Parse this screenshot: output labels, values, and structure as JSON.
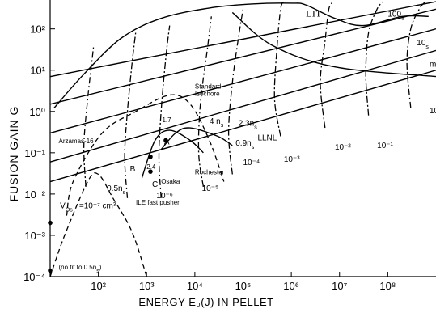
{
  "chart_data": {
    "type": "line",
    "xlabel": "ENERGY E₀(J) IN PELLET",
    "ylabel": "FUSION  GAIN  G",
    "xscale": "log",
    "yscale": "log",
    "xlim": [
      10,
      1000000000
    ],
    "ylim": [
      0.0001,
      500
    ],
    "x_ticks": [
      {
        "v": 100,
        "label": "10²"
      },
      {
        "v": 1000,
        "label": "10³"
      },
      {
        "v": 10000,
        "label": "10⁴"
      },
      {
        "v": 100000,
        "label": "10⁵"
      },
      {
        "v": 1000000,
        "label": "10⁶"
      },
      {
        "v": 10000000,
        "label": "10⁷"
      },
      {
        "v": 100000000,
        "label": "10⁸"
      }
    ],
    "y_ticks": [
      {
        "v": 100,
        "label": "10²"
      },
      {
        "v": 10,
        "label": "10¹"
      },
      {
        "v": 1,
        "label": "10⁰"
      },
      {
        "v": 0.1,
        "label": "10⁻¹"
      },
      {
        "v": 0.01,
        "label": "10⁻²"
      },
      {
        "v": 0.001,
        "label": "10⁻³"
      },
      {
        "v": 0.0001,
        "label": "10⁻⁴"
      }
    ],
    "series": [
      {
        "kind": "solid",
        "points": [
          [
            10,
            0.02
          ],
          [
            1000000000,
            10
          ]
        ]
      },
      {
        "kind": "solid",
        "points": [
          [
            10,
            0.06
          ],
          [
            1000000000,
            30
          ]
        ]
      },
      {
        "kind": "solid",
        "points": [
          [
            10,
            0.3
          ],
          [
            1000000000,
            100
          ]
        ]
      },
      {
        "kind": "solid",
        "points": [
          [
            10,
            1.5
          ],
          [
            1000000000,
            300
          ]
        ]
      },
      {
        "kind": "solid",
        "points": [
          [
            10,
            7
          ],
          [
            1000000000,
            900
          ]
        ]
      },
      {
        "kind": "solid",
        "points": [
          [
            60000,
            250
          ],
          [
            400000,
            40
          ],
          [
            8000000,
            12
          ],
          [
            1000000000,
            7
          ]
        ]
      },
      {
        "kind": "solid",
        "points": [
          [
            12,
            1.2
          ],
          [
            50,
            8
          ],
          [
            300,
            60
          ],
          [
            2000,
            180
          ],
          [
            20000,
            320
          ],
          [
            150000,
            400
          ],
          [
            1000000,
            420
          ],
          [
            2000000,
            380
          ],
          [
            8000000,
            180
          ],
          [
            30000000,
            120
          ],
          [
            200000000,
            200
          ],
          [
            700000000,
            200
          ]
        ]
      },
      {
        "kind": "dashdot",
        "points": [
          [
            55,
            0.015
          ],
          [
            50,
            0.15
          ],
          [
            60,
            2
          ],
          [
            70,
            10
          ],
          [
            80,
            40
          ]
        ]
      },
      {
        "kind": "dashdot",
        "points": [
          [
            400,
            0.008
          ],
          [
            350,
            0.08
          ],
          [
            400,
            1
          ],
          [
            500,
            15
          ],
          [
            600,
            90
          ]
        ]
      },
      {
        "kind": "dashdot",
        "points": [
          [
            2000,
            0.008
          ],
          [
            1800,
            0.08
          ],
          [
            2000,
            1
          ],
          [
            2500,
            20
          ],
          [
            3000,
            120
          ]
        ]
      },
      {
        "kind": "dashdot",
        "points": [
          [
            15000,
            0.015
          ],
          [
            12000,
            0.1
          ],
          [
            13000,
            1.5
          ],
          [
            18000,
            30
          ],
          [
            22000,
            200
          ]
        ]
      },
      {
        "kind": "dashdot",
        "points": [
          [
            60000,
            0.03
          ],
          [
            50000,
            0.3
          ],
          [
            60000,
            5
          ],
          [
            80000,
            60
          ],
          [
            100000,
            300
          ]
        ]
      },
      {
        "kind": "dashdot",
        "points": [
          [
            600000,
            0.25
          ],
          [
            450000,
            2
          ],
          [
            500000,
            30
          ],
          [
            600000,
            300
          ],
          [
            700000,
            600
          ]
        ]
      },
      {
        "kind": "dashdot",
        "points": [
          [
            5000000,
            0.4
          ],
          [
            4000000,
            5
          ],
          [
            5000000,
            50
          ],
          [
            6000000,
            300
          ],
          [
            7500000,
            600
          ]
        ]
      },
      {
        "kind": "dashdot",
        "points": [
          [
            40000000,
            0.8
          ],
          [
            35000000,
            8
          ],
          [
            40000000,
            80
          ],
          [
            60000000,
            300
          ],
          [
            80000000,
            600
          ]
        ]
      },
      {
        "kind": "dashdot",
        "points": [
          [
            300000000,
            1.2
          ],
          [
            250000000,
            15
          ],
          [
            300000000,
            100
          ],
          [
            450000000,
            300
          ],
          [
            600000000,
            500
          ]
        ]
      },
      {
        "kind": "dashed",
        "points": [
          [
            22,
            0.003
          ],
          [
            30,
            0.02
          ],
          [
            120,
            0.3
          ],
          [
            600,
            1
          ],
          [
            3000,
            2.5
          ],
          [
            8000,
            1.5
          ],
          [
            20000,
            0.2
          ],
          [
            40000,
            0.02
          ]
        ]
      },
      {
        "kind": "solid",
        "points": [
          [
            2000,
            0.12
          ],
          [
            4000,
            0.3
          ],
          [
            8000,
            0.4
          ],
          [
            30000,
            0.25
          ],
          [
            60000,
            0.15
          ]
        ]
      },
      {
        "kind": "solid",
        "points": [
          [
            800,
            0.025
          ],
          [
            1500,
            0.2
          ],
          [
            3000,
            0.35
          ],
          [
            8000,
            0.2
          ],
          [
            15000,
            0.1
          ]
        ]
      },
      {
        "kind": "dashed",
        "points": [
          [
            10,
            0.0001
          ],
          [
            20,
            0.001
          ],
          [
            60,
            0.02
          ],
          [
            100,
            0.03
          ],
          [
            200,
            0.008
          ],
          [
            500,
            0.0012
          ],
          [
            1000,
            0.0001
          ]
        ]
      }
    ],
    "annotations": [
      {
        "text": "LTI",
        "x": 2000000,
        "y": 200,
        "style": "serif"
      },
      {
        "text": "100",
        "sub": "s",
        "x": 100000000,
        "y": 200
      },
      {
        "text": "10",
        "sub": "s",
        "x": 400000000,
        "y": 40
      },
      {
        "text": "m",
        "x": 1000000000,
        "y": 12
      },
      {
        "text": "10",
        "x": 1000000000,
        "y": 0.9
      },
      {
        "text": "10⁻¹",
        "x": 60000000,
        "y": 0.13
      },
      {
        "text": "10⁻²",
        "x": 8000000,
        "y": 0.12
      },
      {
        "text": "10⁻³",
        "x": 700000,
        "y": 0.06
      },
      {
        "text": "10⁻⁴",
        "x": 100000,
        "y": 0.05
      },
      {
        "text": "10⁻⁵",
        "x": 14000,
        "y": 0.012
      },
      {
        "text": "10⁻⁶",
        "x": 1600,
        "y": 0.008
      },
      {
        "text": "Standard",
        "x": 10000,
        "y": 3.6,
        "small": true
      },
      {
        "text": "Isochore",
        "x": 10000,
        "y": 2.4,
        "small": true
      },
      {
        "text": "LLNL",
        "x": 200000,
        "y": 0.2
      },
      {
        "text": "Rochester",
        "x": 10000,
        "y": 0.03,
        "small": true
      },
      {
        "text": "Osaka",
        "x": 2000,
        "y": 0.018,
        "small": true
      },
      {
        "text": "Arzamas-16",
        "x": 15,
        "y": 0.17,
        "small": true
      },
      {
        "text": "0.5n",
        "sub": "s",
        "x": 150,
        "y": 0.012
      },
      {
        "text": "0.9n",
        "sub": "s",
        "x": 70000,
        "y": 0.15
      },
      {
        "text": "2.3n",
        "sub": "s",
        "x": 80000,
        "y": 0.45
      },
      {
        "text": "4 n",
        "sub": "s",
        "x": 20000,
        "y": 0.5
      },
      {
        "text": "1.7",
        "x": 2100,
        "y": 0.55,
        "small": true
      },
      {
        "text": "2.4",
        "x": 1000,
        "y": 0.04,
        "small": true
      },
      {
        "text": "A",
        "x": 2300,
        "y": 0.16
      },
      {
        "text": "B",
        "x": 450,
        "y": 0.035
      },
      {
        "text": "C",
        "x": 1300,
        "y": 0.015
      },
      {
        "text": "V",
        "sub": "Os",
        "x": 16,
        "y": 0.0045
      },
      {
        "text": "=10⁻⁷ cm³",
        "x": 40,
        "y": 0.0045
      },
      {
        "text": "ILE fast pusher",
        "x": 600,
        "y": 0.0055,
        "small": true
      },
      {
        "text": "(no fit to 0.5n",
        "sub": "s",
        "tail": ")",
        "x": 15,
        "y": 0.00015,
        "small": true
      }
    ],
    "points": [
      {
        "x": 1200,
        "y": 0.08
      },
      {
        "x": 2500,
        "y": 0.2
      },
      {
        "x": 1200,
        "y": 0.035
      },
      {
        "x": 10,
        "y": 0.002
      },
      {
        "x": 10,
        "y": 0.00014
      }
    ]
  }
}
